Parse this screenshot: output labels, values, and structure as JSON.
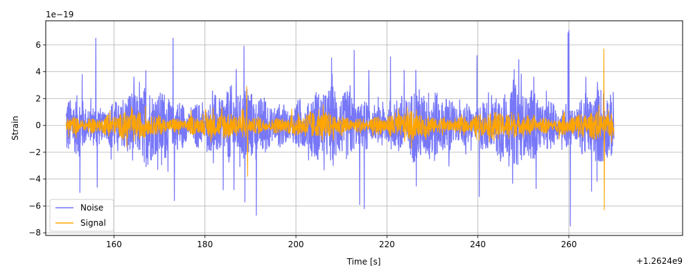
{
  "chart_data": {
    "type": "line",
    "xlabel": "Time [s]",
    "ylabel": "Strain",
    "x_offset_label": "+1.2624e9",
    "y_multiplier_label": "1e−19",
    "xlim": [
      145,
      285
    ],
    "ylim": [
      -8.2,
      7.8
    ],
    "x_ticks": [
      160,
      180,
      200,
      220,
      240,
      260
    ],
    "x_tick_labels": [
      "160",
      "180",
      "200",
      "220",
      "240",
      "260"
    ],
    "y_ticks": [
      -8,
      -6,
      -4,
      -2,
      0,
      2,
      4,
      6
    ],
    "y_tick_labels": [
      "−8",
      "−6",
      "−4",
      "−2",
      "0",
      "2",
      "4",
      "6"
    ],
    "grid": true,
    "legend_position": "lower-left",
    "series": [
      {
        "name": "Noise",
        "color": "#7070f8",
        "x_range": [
          149.5,
          269.9
        ],
        "typical_amplitude": 2.0,
        "peaks": [
          {
            "x": 152.5,
            "y": -5.0
          },
          {
            "x": 153.0,
            "y": 3.8
          },
          {
            "x": 156.0,
            "y": 6.5
          },
          {
            "x": 156.3,
            "y": -4.6
          },
          {
            "x": 173.0,
            "y": 6.5
          },
          {
            "x": 173.3,
            "y": -5.6
          },
          {
            "x": 184.0,
            "y": -4.8
          },
          {
            "x": 188.6,
            "y": 5.9
          },
          {
            "x": 188.8,
            "y": -5.7
          },
          {
            "x": 191.3,
            "y": -6.7
          },
          {
            "x": 212.8,
            "y": 5.6
          },
          {
            "x": 214.0,
            "y": -5.9
          },
          {
            "x": 215.0,
            "y": -6.2
          },
          {
            "x": 216.0,
            "y": 4.1
          },
          {
            "x": 220.8,
            "y": 5.1
          },
          {
            "x": 223.8,
            "y": 4.1
          },
          {
            "x": 239.8,
            "y": 5.2
          },
          {
            "x": 240.3,
            "y": -5.3
          },
          {
            "x": 249.0,
            "y": 4.9
          },
          {
            "x": 252.8,
            "y": -4.7
          },
          {
            "x": 259.8,
            "y": 6.9
          },
          {
            "x": 260.0,
            "y": 7.1
          },
          {
            "x": 260.3,
            "y": -7.5
          },
          {
            "x": 265.0,
            "y": -4.9
          }
        ]
      },
      {
        "name": "Signal",
        "color": "#ffa500",
        "x_range": [
          149.5,
          269.9
        ],
        "typical_amplitude": 0.7,
        "peaks": [
          {
            "x": 189.2,
            "y": 2.9
          },
          {
            "x": 189.4,
            "y": -3.8
          },
          {
            "x": 267.7,
            "y": 5.7
          },
          {
            "x": 267.8,
            "y": -6.3
          }
        ]
      }
    ]
  }
}
